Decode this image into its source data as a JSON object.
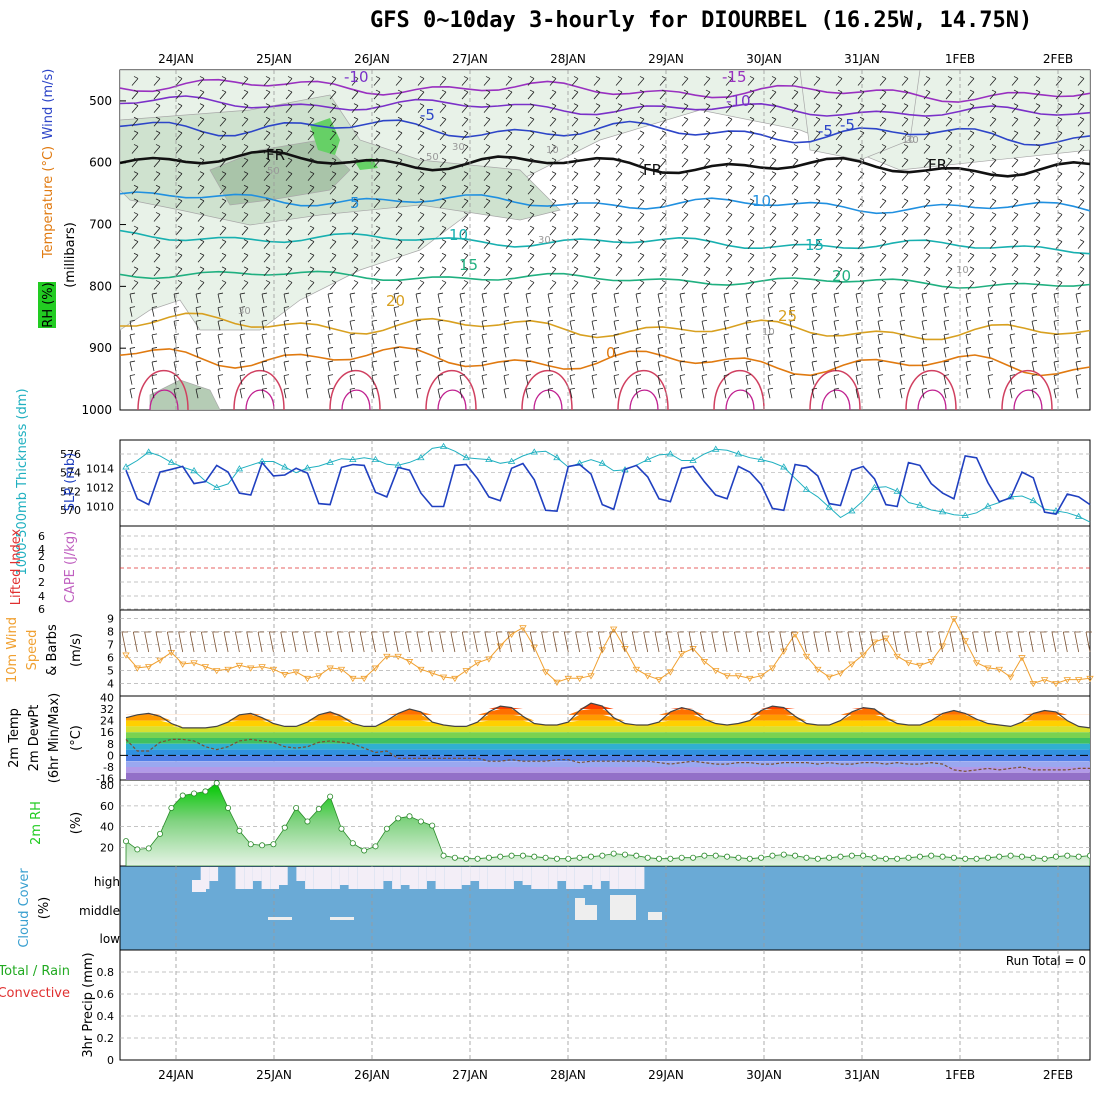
{
  "title": "GFS 0~10day 3-hourly for DIOURBEL (16.25W, 14.75N)",
  "dates": [
    "24JAN",
    "25JAN",
    "26JAN",
    "27JAN",
    "28JAN",
    "29JAN",
    "30JAN",
    "31JAN",
    "1FEB",
    "2FEB"
  ],
  "colors": {
    "grid": "#9a9a9a",
    "zero_line": "#e03030",
    "rh_green": "#22cc22",
    "temp_orange": "#e07a10",
    "slp": "#2040c0",
    "thickness": "#20b0c0",
    "wind": "#f0a030",
    "cloud": "#6aaad6",
    "precip_green": "#22aa22"
  },
  "chart_data": [
    {
      "panel": "upper-air",
      "type": "contour",
      "ylabel": "(millibars)",
      "side_labels": [
        "RH (%)",
        "Temperature (°C)",
        "Wind (m/s)"
      ],
      "y_ticks": [
        500,
        600,
        700,
        800,
        900,
        1000
      ],
      "ylim": [
        450,
        1000
      ],
      "isotherm_labels": [
        "-15",
        "-10",
        "-10",
        "-5",
        "-5",
        "FR",
        "FR",
        "FR",
        "-5",
        "5",
        "10",
        "10",
        "15",
        "15",
        "20",
        "20",
        "25",
        "0"
      ],
      "rh_labels": [
        "50",
        "50",
        "30",
        "30",
        "30",
        "30",
        "10",
        "10",
        "10",
        "10"
      ]
    },
    {
      "panel": "slp-thickness",
      "type": "line",
      "left_label": "1000-500mb Thickness (dm)",
      "right_label": "SLP (mb)",
      "thickness_ticks": [
        "576",
        "574",
        "572",
        "570"
      ],
      "slp_ticks": [
        "1014",
        "1012",
        "1010"
      ],
      "series": [
        {
          "name": "SLP",
          "unit": "mb",
          "values": [
            1013.8,
            1010.8,
            1010.2,
            1013.6,
            1013.9,
            1014.2,
            1012.4,
            1012.6,
            1014.3,
            1013.6,
            1011.4,
            1011.2,
            1014.6,
            1013.2,
            1013.3,
            1014.0,
            1013.5,
            1010.3,
            1010.2,
            1014.1,
            1014.4,
            1014.3,
            1011.5,
            1011.0,
            1014.1,
            1013.8,
            1011.4,
            1010.0,
            1010.0,
            1014.3,
            1014.4,
            1012.9,
            1011.0,
            1010.6,
            1014.0,
            1014.5,
            1012.8,
            1009.6,
            1009.5,
            1014.2,
            1014.4,
            1013.4,
            1010.2,
            1009.7,
            1013.9,
            1014.3,
            1013.1,
            1010.8,
            1010.5,
            1014.0,
            1014.2,
            1012.6,
            1011.2,
            1010.8,
            1014.2,
            1013.6,
            1012.3,
            1009.8,
            1009.6,
            1014.4,
            1014.2,
            1013.2,
            1010.3,
            1010.1,
            1013.8,
            1014.2,
            1012.9,
            1010.2,
            1010.0,
            1014.6,
            1014.3,
            1012.4,
            1011.4,
            1010.8,
            1015.3,
            1015.1,
            1012.5,
            1010.5,
            1010.9,
            1013.6,
            1013.0,
            1009.4,
            1009.2,
            1011.3,
            1011.0,
            1010.2
          ]
        },
        {
          "name": "1000-500mb Thickness",
          "unit": "dm",
          "values": [
            574.6,
            575.3,
            576.2,
            575.8,
            575.1,
            574.6,
            574.2,
            573.1,
            572.4,
            572.8,
            574.4,
            574.8,
            575.2,
            575.2,
            574.6,
            574.0,
            574.5,
            574.7,
            575.1,
            575.5,
            575.4,
            575.6,
            575.4,
            574.9,
            574.8,
            575.1,
            575.6,
            576.6,
            576.8,
            576.3,
            575.6,
            575.5,
            575.4,
            575.0,
            575.2,
            575.8,
            576.2,
            576.3,
            575.6,
            574.6,
            575.0,
            575.4,
            575.0,
            574.2,
            574.3,
            574.8,
            575.4,
            575.9,
            576.0,
            575.3,
            575.3,
            576.0,
            576.5,
            576.4,
            576.0,
            575.6,
            575.4,
            575.1,
            574.6,
            573.4,
            572.2,
            571.4,
            570.3,
            569.2,
            569.9,
            571.0,
            572.4,
            572.5,
            572.0,
            570.8,
            570.5,
            570.0,
            569.8,
            569.5,
            569.4,
            569.7,
            570.4,
            570.8,
            571.4,
            571.5,
            571.0,
            570.1,
            569.9,
            569.7,
            569.3,
            568.7
          ]
        }
      ]
    },
    {
      "panel": "cape-li",
      "type": "line",
      "left_label": "Lifted Index",
      "right_label": "CAPE (J/kg)",
      "y_ticks": [
        "6",
        "4",
        "2",
        "0",
        "2",
        "4",
        "6"
      ],
      "values_li": [],
      "values_cape": []
    },
    {
      "panel": "wind10m",
      "type": "line",
      "label_lines": [
        "10m Wind",
        "Speed",
        "& Barbs"
      ],
      "unit_label": "(m/s)",
      "y_ticks": [
        "9",
        "8",
        "7",
        "6",
        "5",
        "4"
      ],
      "ylim": [
        3.5,
        9.2
      ],
      "series": [
        {
          "name": "10m wind speed",
          "values": [
            6.2,
            5.2,
            5.3,
            5.8,
            6.4,
            5.5,
            5.6,
            5.3,
            5.0,
            5.1,
            5.4,
            5.2,
            5.3,
            5.1,
            4.7,
            4.9,
            4.4,
            4.6,
            5.2,
            5.1,
            4.4,
            4.4,
            5.2,
            6.1,
            6.1,
            5.7,
            5.1,
            4.8,
            4.5,
            4.4,
            5.0,
            5.6,
            5.9,
            6.9,
            7.8,
            8.3,
            6.8,
            4.9,
            4.1,
            4.4,
            4.4,
            4.6,
            6.6,
            8.2,
            6.7,
            5.1,
            4.6,
            4.3,
            4.9,
            6.3,
            6.7,
            5.7,
            5.0,
            4.6,
            4.6,
            4.4,
            4.6,
            5.2,
            6.5,
            7.8,
            6.1,
            5.1,
            4.5,
            4.8,
            5.5,
            6.2,
            7.2,
            7.5,
            6.1,
            5.6,
            5.4,
            5.7,
            6.9,
            9.0,
            7.3,
            5.6,
            5.2,
            5.1,
            4.5,
            6.0,
            4.0,
            4.3,
            4.0,
            4.3,
            4.3,
            4.4
          ]
        }
      ]
    },
    {
      "panel": "temp2m",
      "type": "area",
      "label_lines": [
        "2m Temp",
        "2m DewPt",
        "(6hr Min/Max)"
      ],
      "unit_label": "(°C)",
      "y_ticks": [
        "40",
        "32",
        "24",
        "16",
        "8",
        "0",
        "-8",
        "-16"
      ],
      "ylim": [
        -17,
        41
      ],
      "series": [
        {
          "name": "2m Temp",
          "values": [
            26,
            28,
            29,
            27,
            22,
            19,
            19,
            19,
            20,
            23,
            28,
            29,
            26,
            22,
            20,
            20,
            23,
            28,
            30,
            27,
            22,
            20,
            20,
            24,
            29,
            32,
            30,
            23,
            21,
            20,
            20,
            23,
            30,
            34,
            33,
            27,
            22,
            21,
            21,
            23,
            31,
            36,
            34,
            26,
            22,
            21,
            21,
            23,
            30,
            33,
            31,
            25,
            22,
            21,
            22,
            24,
            31,
            34,
            33,
            27,
            22,
            21,
            21,
            24,
            30,
            33,
            32,
            26,
            22,
            21,
            21,
            24,
            29,
            31,
            29,
            25,
            22,
            21,
            20,
            23,
            29,
            31,
            30,
            24,
            20,
            19
          ]
        },
        {
          "name": "2m DewPt",
          "values": [
            11,
            3,
            3,
            9,
            11,
            11,
            10,
            6,
            4,
            6,
            10,
            11,
            10,
            9,
            6,
            5,
            6,
            9,
            10,
            9,
            8,
            5,
            2,
            3,
            -2,
            -2,
            -2,
            -2,
            -2,
            -2,
            -2,
            -2,
            -4,
            -4,
            -3,
            -4,
            -4,
            -4,
            -3,
            -3,
            -5,
            -4,
            -4,
            -4,
            -4,
            -4,
            -4,
            -5,
            -6,
            -5,
            -4,
            -5,
            -6,
            -6,
            -5,
            -5,
            -6,
            -6,
            -5,
            -5,
            -5,
            -6,
            -5,
            -6,
            -6,
            -5,
            -5,
            -6,
            -5,
            -6,
            -6,
            -5,
            -6,
            -10,
            -11,
            -10,
            -9,
            -10,
            -9,
            -8,
            -10,
            -10,
            -10,
            -10,
            -9,
            -9
          ]
        }
      ]
    },
    {
      "panel": "rh2m",
      "type": "area",
      "label": "2m RH",
      "unit_label": "(%)",
      "y_ticks": [
        "80",
        "60",
        "40",
        "20"
      ],
      "ylim": [
        2,
        85
      ],
      "series": [
        {
          "name": "2m RH",
          "values": [
            26,
            18,
            19,
            33,
            58,
            70,
            72,
            74,
            82,
            58,
            36,
            23,
            22,
            23,
            39,
            58,
            45,
            57,
            69,
            38,
            24,
            17,
            21,
            38,
            48,
            50,
            45,
            41,
            12,
            10,
            9,
            9,
            10,
            11,
            12,
            12,
            11,
            10,
            9,
            9,
            10,
            11,
            12,
            14,
            13,
            12,
            10,
            9,
            9,
            10,
            10,
            12,
            12,
            11,
            10,
            9,
            10,
            12,
            13,
            12,
            10,
            9,
            10,
            11,
            12,
            12,
            10,
            9,
            9,
            10,
            11,
            12,
            11,
            10,
            9,
            9,
            10,
            11,
            12,
            11,
            10,
            9,
            11,
            12,
            11,
            12
          ]
        }
      ]
    },
    {
      "panel": "cloud",
      "type": "area",
      "label": "Cloud Cover",
      "unit_label": "(%)",
      "level_labels": [
        "high",
        "middle",
        "low"
      ]
    },
    {
      "panel": "precip",
      "type": "bar",
      "label_parts": [
        "Total / Rain",
        "Convective"
      ],
      "ylabel": "3hr Precip (mm)",
      "y_ticks": [
        "0",
        "0.2",
        "0.4",
        "0.6",
        "0.8"
      ],
      "ylim": [
        0,
        1
      ],
      "run_total": "Run Total = 0",
      "values": []
    }
  ]
}
